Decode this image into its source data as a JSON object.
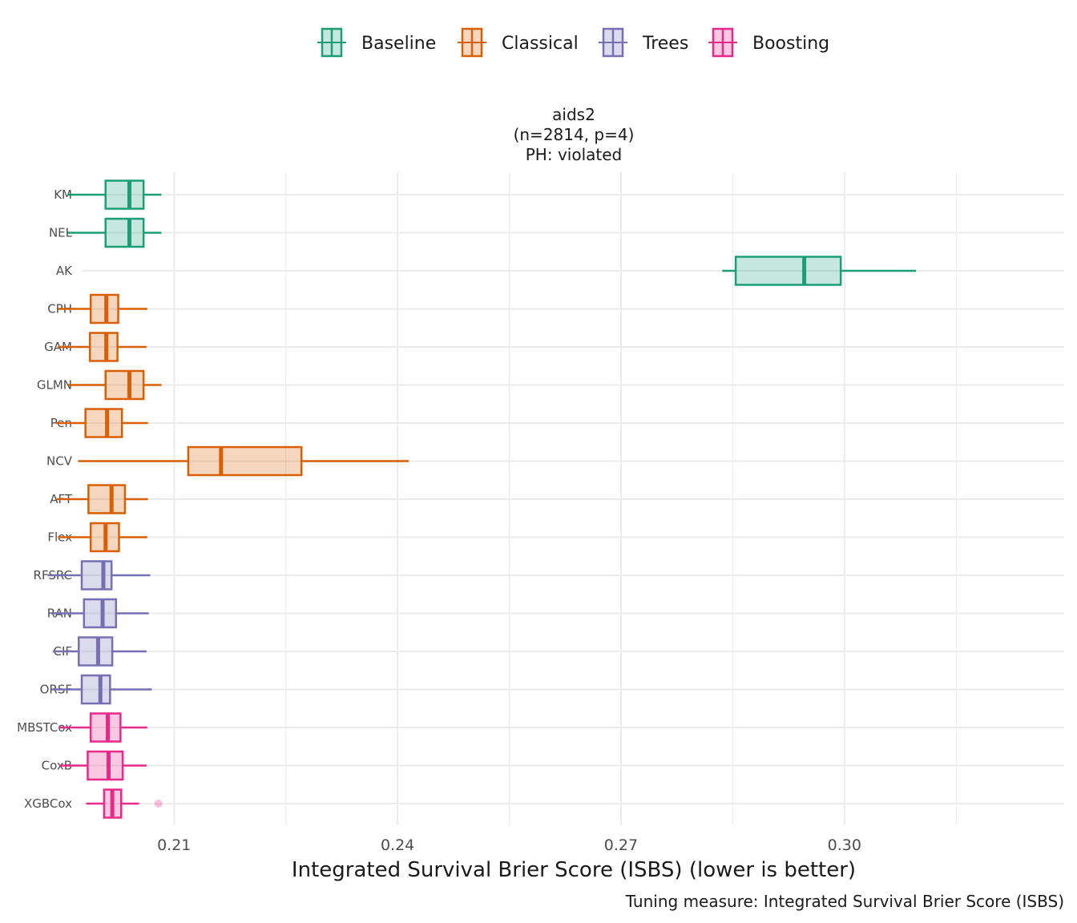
{
  "chart_data": {
    "type": "boxplot",
    "facet_title": [
      "aids2",
      "(n=2814, p=4)",
      "PH: violated"
    ],
    "xlabel": "Integrated Survival Brier Score (ISBS) (lower is better)",
    "caption": "Tuning measure: Integrated Survival Brier Score (ISBS)",
    "xlim": [
      0.1976,
      0.3295
    ],
    "xticks": [
      0.21,
      0.24,
      0.27,
      0.3
    ],
    "xtick_labels": [
      "0.21",
      "0.24",
      "0.27",
      "0.30"
    ],
    "legend_position": "top",
    "grid": true,
    "groups": [
      {
        "name": "Baseline",
        "color": "#1b9e77"
      },
      {
        "name": "Classical",
        "color": "#d95f02"
      },
      {
        "name": "Trees",
        "color": "#7570b3"
      },
      {
        "name": "Boosting",
        "color": "#e7298a"
      }
    ],
    "learners": [
      {
        "name": "KM",
        "group": "Baseline",
        "whisker_low": 0.1957,
        "q1": 0.2008,
        "median": 0.204,
        "q3": 0.2059,
        "whisker_high": 0.2083,
        "outliers": []
      },
      {
        "name": "NEL",
        "group": "Baseline",
        "whisker_low": 0.1957,
        "q1": 0.2008,
        "median": 0.204,
        "q3": 0.2059,
        "whisker_high": 0.2083,
        "outliers": []
      },
      {
        "name": "AK",
        "group": "Baseline",
        "whisker_low": 0.2836,
        "q1": 0.2854,
        "median": 0.2946,
        "q3": 0.2995,
        "whisker_high": 0.3096,
        "outliers": []
      },
      {
        "name": "CPH",
        "group": "Classical",
        "whisker_low": 0.1944,
        "q1": 0.1988,
        "median": 0.2009,
        "q3": 0.2025,
        "whisker_high": 0.2064,
        "outliers": []
      },
      {
        "name": "GAM",
        "group": "Classical",
        "whisker_low": 0.1944,
        "q1": 0.1987,
        "median": 0.2009,
        "q3": 0.2024,
        "whisker_high": 0.2063,
        "outliers": []
      },
      {
        "name": "GLMN",
        "group": "Classical",
        "whisker_low": 0.1957,
        "q1": 0.2008,
        "median": 0.204,
        "q3": 0.2059,
        "whisker_high": 0.2083,
        "outliers": []
      },
      {
        "name": "Pen",
        "group": "Classical",
        "whisker_low": 0.1941,
        "q1": 0.1981,
        "median": 0.201,
        "q3": 0.203,
        "whisker_high": 0.2065,
        "outliers": []
      },
      {
        "name": "NCV",
        "group": "Classical",
        "whisker_low": 0.1971,
        "q1": 0.2119,
        "median": 0.2163,
        "q3": 0.2271,
        "whisker_high": 0.2415,
        "outliers": []
      },
      {
        "name": "AFT",
        "group": "Classical",
        "whisker_low": 0.1942,
        "q1": 0.1985,
        "median": 0.2016,
        "q3": 0.2034,
        "whisker_high": 0.2065,
        "outliers": []
      },
      {
        "name": "Flex",
        "group": "Classical",
        "whisker_low": 0.1944,
        "q1": 0.1988,
        "median": 0.2008,
        "q3": 0.2026,
        "whisker_high": 0.2064,
        "outliers": []
      },
      {
        "name": "RFSRC",
        "group": "Trees",
        "whisker_low": 0.193,
        "q1": 0.1976,
        "median": 0.2005,
        "q3": 0.2016,
        "whisker_high": 0.2068,
        "outliers": []
      },
      {
        "name": "RAN",
        "group": "Trees",
        "whisker_low": 0.1935,
        "q1": 0.1979,
        "median": 0.2004,
        "q3": 0.2022,
        "whisker_high": 0.2066,
        "outliers": []
      },
      {
        "name": "CIF",
        "group": "Trees",
        "whisker_low": 0.1937,
        "q1": 0.1972,
        "median": 0.1998,
        "q3": 0.2017,
        "whisker_high": 0.2063,
        "outliers": []
      },
      {
        "name": "ORSF",
        "group": "Trees",
        "whisker_low": 0.1935,
        "q1": 0.1976,
        "median": 0.2001,
        "q3": 0.2014,
        "whisker_high": 0.207,
        "outliers": []
      },
      {
        "name": "MBSTCox",
        "group": "Boosting",
        "whisker_low": 0.1945,
        "q1": 0.1988,
        "median": 0.2011,
        "q3": 0.2028,
        "whisker_high": 0.2064,
        "outliers": []
      },
      {
        "name": "CoxB",
        "group": "Boosting",
        "whisker_low": 0.1946,
        "q1": 0.1984,
        "median": 0.2012,
        "q3": 0.2031,
        "whisker_high": 0.2063,
        "outliers": []
      },
      {
        "name": "XGBCox",
        "group": "Boosting",
        "whisker_low": 0.1982,
        "q1": 0.2006,
        "median": 0.2017,
        "q3": 0.2029,
        "whisker_high": 0.2053,
        "outliers": [
          0.2079
        ]
      }
    ]
  }
}
